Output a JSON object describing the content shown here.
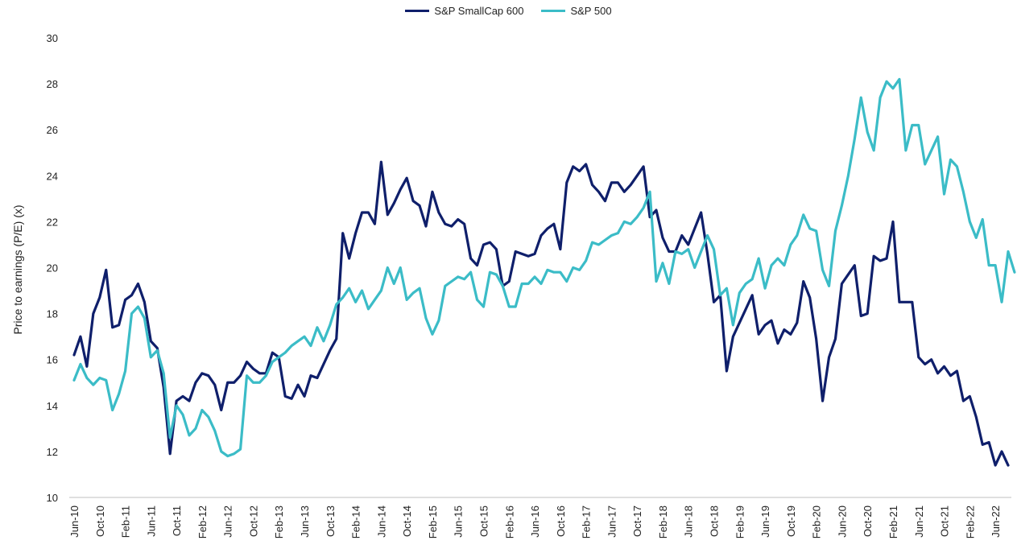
{
  "chart_data": {
    "type": "line",
    "title": "",
    "xlabel": "",
    "ylabel": "Price to earnings (P/E) (x)",
    "ylim": [
      10,
      30
    ],
    "yticks": [
      10,
      12,
      14,
      16,
      18,
      20,
      22,
      24,
      26,
      28,
      30
    ],
    "xtick_labels": [
      "Jun-10",
      "Oct-10",
      "Feb-11",
      "Jun-11",
      "Oct-11",
      "Feb-12",
      "Jun-12",
      "Oct-12",
      "Feb-13",
      "Jun-13",
      "Oct-13",
      "Feb-14",
      "Jun-14",
      "Oct-14",
      "Feb-15",
      "Jun-15",
      "Oct-15",
      "Feb-16",
      "Jun-16",
      "Oct-16",
      "Feb-17",
      "Jun-17",
      "Oct-17",
      "Feb-18",
      "Jun-18",
      "Oct-18",
      "Feb-19",
      "Jun-19",
      "Oct-19",
      "Feb-20",
      "Jun-20",
      "Oct-20",
      "Feb-21",
      "Jun-21",
      "Oct-21",
      "Feb-22",
      "Jun-22"
    ],
    "x_start": "Jun-10",
    "x_end": "Sep-22",
    "grid": false,
    "legend_position": "top-center",
    "series": [
      {
        "name": "S&P SmallCap 600",
        "color": "#0f1f6b",
        "values": [
          16.2,
          17.0,
          15.7,
          18.0,
          18.7,
          19.9,
          17.4,
          17.5,
          18.6,
          18.8,
          19.3,
          18.5,
          16.8,
          16.5,
          14.8,
          11.9,
          14.2,
          14.4,
          14.2,
          15.0,
          15.4,
          15.3,
          14.9,
          13.8,
          15.0,
          15.0,
          15.3,
          15.9,
          15.6,
          15.4,
          15.4,
          16.3,
          16.1,
          14.4,
          14.3,
          14.9,
          14.4,
          15.3,
          15.2,
          15.8,
          16.4,
          16.9,
          21.5,
          20.4,
          21.5,
          22.4,
          22.4,
          21.9,
          24.6,
          22.3,
          22.8,
          23.4,
          23.9,
          22.9,
          22.7,
          21.8,
          23.3,
          22.4,
          21.9,
          21.8,
          22.1,
          21.9,
          20.4,
          20.1,
          21.0,
          21.1,
          20.8,
          19.2,
          19.4,
          20.7,
          20.6,
          20.5,
          20.6,
          21.4,
          21.7,
          21.9,
          20.8,
          23.7,
          24.4,
          24.2,
          24.5,
          23.6,
          23.3,
          22.9,
          23.7,
          23.7,
          23.3,
          23.6,
          24.0,
          24.4,
          22.2,
          22.5,
          21.3,
          20.7,
          20.7,
          21.4,
          21.0,
          21.7,
          22.4,
          20.6,
          18.5,
          18.8,
          15.5,
          17.0,
          17.6,
          18.2,
          18.8,
          17.1,
          17.5,
          17.7,
          16.7,
          17.3,
          17.1,
          17.6,
          19.4,
          18.7,
          16.9,
          14.2,
          16.1,
          16.9,
          19.3,
          19.7,
          20.1,
          17.9,
          18.0,
          20.5,
          20.3,
          20.4,
          22.0,
          18.5,
          18.5,
          18.5,
          16.1,
          15.8,
          16.0,
          15.4,
          15.7,
          15.3,
          15.5,
          14.2,
          14.4,
          13.5,
          12.3,
          12.4,
          11.4,
          12.0,
          11.4
        ]
      },
      {
        "name": "S&P 500",
        "color": "#3bbcc7",
        "values": [
          15.1,
          15.8,
          15.2,
          14.9,
          15.2,
          15.1,
          13.8,
          14.5,
          15.5,
          18.0,
          18.3,
          17.8,
          16.1,
          16.4,
          15.4,
          12.6,
          14.0,
          13.6,
          12.7,
          13.0,
          13.8,
          13.5,
          12.9,
          12.0,
          11.8,
          11.9,
          12.1,
          15.3,
          15.0,
          15.0,
          15.3,
          15.9,
          16.1,
          16.3,
          16.6,
          16.8,
          17.0,
          16.6,
          17.4,
          16.8,
          17.5,
          18.4,
          18.7,
          19.1,
          18.5,
          19.0,
          18.2,
          18.6,
          19.0,
          20.0,
          19.3,
          20.0,
          18.6,
          18.9,
          19.1,
          17.8,
          17.1,
          17.7,
          19.2,
          19.4,
          19.6,
          19.5,
          19.8,
          18.6,
          18.3,
          19.8,
          19.7,
          19.2,
          18.3,
          18.3,
          19.3,
          19.3,
          19.6,
          19.3,
          19.9,
          19.8,
          19.8,
          19.4,
          20.0,
          19.9,
          20.3,
          21.1,
          21.0,
          21.2,
          21.4,
          21.5,
          22.0,
          21.9,
          22.2,
          22.6,
          23.3,
          19.4,
          20.2,
          19.3,
          20.7,
          20.6,
          20.8,
          20.0,
          20.7,
          21.4,
          20.8,
          18.8,
          19.1,
          17.5,
          18.9,
          19.3,
          19.5,
          20.4,
          19.1,
          20.1,
          20.4,
          20.1,
          21.0,
          21.4,
          22.3,
          21.7,
          21.6,
          19.9,
          19.2,
          21.6,
          22.7,
          24.0,
          25.6,
          27.4,
          25.9,
          25.1,
          27.4,
          28.1,
          27.8,
          28.2,
          25.1,
          26.2,
          26.2,
          24.5,
          25.1,
          25.7,
          23.2,
          24.7,
          24.4,
          23.3,
          22.0,
          21.3,
          22.1,
          20.1,
          20.1,
          18.5,
          20.7,
          19.8
        ]
      }
    ]
  }
}
